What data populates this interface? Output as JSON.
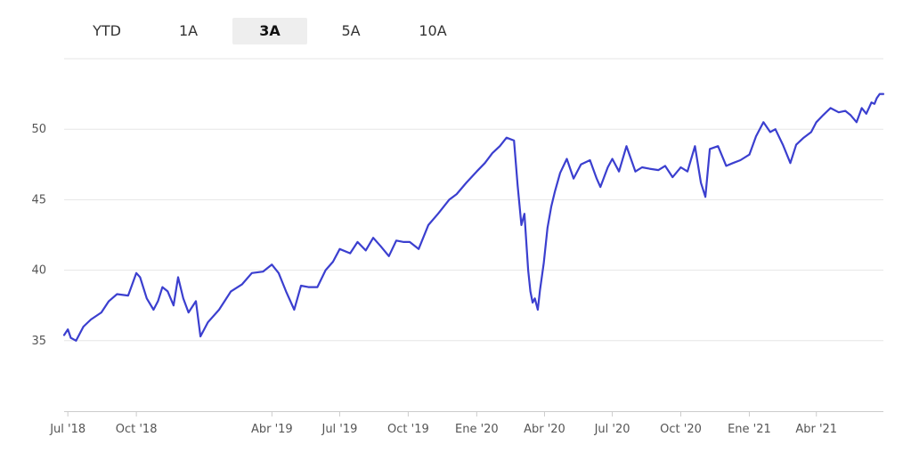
{
  "range_selector": {
    "options": [
      "YTD",
      "1A",
      "3A",
      "5A",
      "10A"
    ],
    "selected": "3A"
  },
  "colors": {
    "line": "#3b3fcf",
    "grid": "#e6e6e6",
    "active_button_bg": "#eeeeee"
  },
  "chart_data": {
    "type": "line",
    "title": "",
    "xlabel": "",
    "ylabel": "",
    "ylim": [
      30,
      55
    ],
    "xlim": [
      "2018-06-26",
      "2021-06-30"
    ],
    "y_ticks": [
      35,
      40,
      45,
      50
    ],
    "y_tick_labels": [
      "35",
      "40",
      "45",
      "50"
    ],
    "x_ticks": [
      {
        "date": "2018-07-01",
        "label": "Jul '18"
      },
      {
        "date": "2018-10-01",
        "label": "Oct '18"
      },
      {
        "date": "2019-04-01",
        "label": "Abr '19"
      },
      {
        "date": "2019-07-01",
        "label": "Jul '19"
      },
      {
        "date": "2019-10-01",
        "label": "Oct '19"
      },
      {
        "date": "2020-01-01",
        "label": "Ene '20"
      },
      {
        "date": "2020-04-01",
        "label": "Abr '20"
      },
      {
        "date": "2020-07-01",
        "label": "Jul '20"
      },
      {
        "date": "2020-10-01",
        "label": "Oct '20"
      },
      {
        "date": "2021-01-01",
        "label": "Ene '21"
      },
      {
        "date": "2021-04-01",
        "label": "Abr '21"
      }
    ],
    "grid": true,
    "series": [
      {
        "x": [
          "2018-06-26",
          "2018-07-01",
          "2018-07-05",
          "2018-07-12",
          "2018-07-22",
          "2018-08-01",
          "2018-08-15",
          "2018-08-25",
          "2018-09-05",
          "2018-09-20",
          "2018-10-01",
          "2018-10-06",
          "2018-10-15",
          "2018-10-24",
          "2018-10-30",
          "2018-11-05",
          "2018-11-12",
          "2018-11-20",
          "2018-11-26",
          "2018-12-03",
          "2018-12-10",
          "2018-12-20",
          "2018-12-26",
          "2019-01-05",
          "2019-01-20",
          "2019-02-05",
          "2019-02-20",
          "2019-03-05",
          "2019-03-20",
          "2019-04-01",
          "2019-04-10",
          "2019-04-20",
          "2019-05-01",
          "2019-05-10",
          "2019-05-20",
          "2019-06-01",
          "2019-06-12",
          "2019-06-22",
          "2019-07-01",
          "2019-07-15",
          "2019-07-25",
          "2019-08-05",
          "2019-08-15",
          "2019-08-25",
          "2019-09-05",
          "2019-09-15",
          "2019-09-25",
          "2019-10-03",
          "2019-10-15",
          "2019-10-28",
          "2019-11-10",
          "2019-11-25",
          "2019-12-05",
          "2019-12-18",
          "2020-01-01",
          "2020-01-12",
          "2020-01-22",
          "2020-02-01",
          "2020-02-10",
          "2020-02-20",
          "2020-02-25",
          "2020-03-01",
          "2020-03-05",
          "2020-03-10",
          "2020-03-13",
          "2020-03-16",
          "2020-03-19",
          "2020-03-23",
          "2020-03-26",
          "2020-03-31",
          "2020-04-05",
          "2020-04-10",
          "2020-04-15",
          "2020-04-22",
          "2020-05-01",
          "2020-05-10",
          "2020-05-20",
          "2020-06-01",
          "2020-06-10",
          "2020-06-15",
          "2020-06-25",
          "2020-07-01",
          "2020-07-10",
          "2020-07-20",
          "2020-08-01",
          "2020-08-10",
          "2020-08-20",
          "2020-09-01",
          "2020-09-10",
          "2020-09-20",
          "2020-10-01",
          "2020-10-10",
          "2020-10-20",
          "2020-10-28",
          "2020-11-03",
          "2020-11-09",
          "2020-11-20",
          "2020-12-01",
          "2020-12-10",
          "2020-12-20",
          "2021-01-01",
          "2021-01-10",
          "2021-01-20",
          "2021-01-29",
          "2021-02-05",
          "2021-02-15",
          "2021-02-25",
          "2021-03-05",
          "2021-03-15",
          "2021-03-25",
          "2021-04-01",
          "2021-04-10",
          "2021-04-20",
          "2021-05-01",
          "2021-05-10",
          "2021-05-17",
          "2021-05-25",
          "2021-06-01",
          "2021-06-07",
          "2021-06-14",
          "2021-06-18",
          "2021-06-21",
          "2021-06-25",
          "2021-06-30"
        ],
        "y": [
          35.4,
          35.8,
          35.2,
          35.0,
          36.0,
          36.5,
          37.0,
          37.8,
          38.3,
          38.2,
          39.8,
          39.5,
          38.0,
          37.2,
          37.8,
          38.8,
          38.5,
          37.5,
          39.5,
          38.0,
          37.0,
          37.8,
          35.3,
          36.3,
          37.2,
          38.5,
          39.0,
          39.8,
          39.9,
          40.4,
          39.8,
          38.5,
          37.2,
          38.9,
          38.8,
          38.8,
          40.0,
          40.6,
          41.5,
          41.2,
          42.0,
          41.4,
          42.3,
          41.7,
          41.0,
          42.1,
          42.0,
          42.0,
          41.5,
          43.2,
          44.0,
          45.0,
          45.4,
          46.2,
          47.0,
          47.6,
          48.3,
          48.8,
          49.4,
          49.2,
          46.0,
          43.2,
          44.0,
          40.0,
          38.5,
          37.7,
          38.0,
          37.2,
          38.6,
          40.5,
          43.0,
          44.5,
          45.6,
          46.9,
          47.9,
          46.5,
          47.5,
          47.8,
          46.5,
          45.9,
          47.3,
          47.9,
          47.0,
          48.8,
          47.0,
          47.3,
          47.2,
          47.1,
          47.4,
          46.6,
          47.3,
          47.0,
          48.8,
          46.2,
          45.2,
          48.6,
          48.8,
          47.4,
          47.6,
          47.8,
          48.2,
          49.5,
          50.5,
          49.8,
          50.0,
          48.9,
          47.6,
          48.9,
          49.4,
          49.8,
          50.5,
          51.0,
          51.5,
          51.2,
          51.3,
          51.0,
          50.5,
          51.5,
          51.1,
          51.9,
          51.8,
          52.2,
          52.5,
          52.5
        ]
      }
    ]
  }
}
